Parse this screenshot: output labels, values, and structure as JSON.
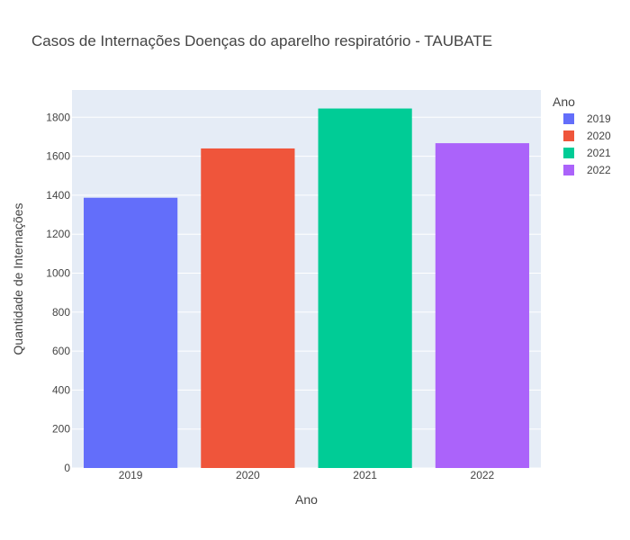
{
  "chart_data": {
    "type": "bar",
    "title": "Casos de Internações Doenças do aparelho respiratório - TAUBATE",
    "xlabel": "Ano",
    "ylabel": "Quantidade de Internações",
    "categories": [
      "2019",
      "2020",
      "2021",
      "2022"
    ],
    "series": [
      {
        "name": "2019",
        "category": "2019",
        "value": 1387,
        "color": "#636efa"
      },
      {
        "name": "2020",
        "category": "2020",
        "value": 1640,
        "color": "#EF553B"
      },
      {
        "name": "2021",
        "category": "2021",
        "value": 1845,
        "color": "#00cc96"
      },
      {
        "name": "2022",
        "category": "2022",
        "value": 1667,
        "color": "#ab63fa"
      }
    ],
    "ylim": [
      0,
      1800
    ],
    "yticks": [
      0,
      200,
      400,
      600,
      800,
      1000,
      1200,
      1400,
      1600,
      1800
    ],
    "grid": true,
    "legend": {
      "title": "Ano",
      "placement": "top-right"
    },
    "plot_background": "#E5ECF6"
  }
}
